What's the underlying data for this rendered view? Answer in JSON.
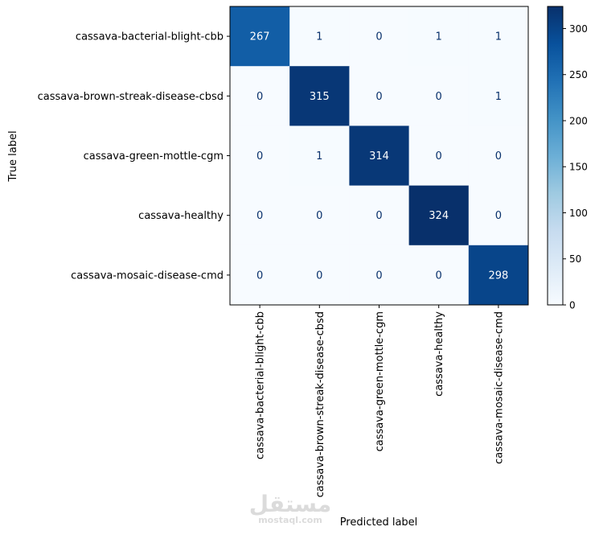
{
  "watermark": {
    "arabic": "مستقل",
    "latin": "mostaql.com"
  },
  "chart_data": {
    "type": "heatmap",
    "xlabel": "Predicted label",
    "ylabel": "True label",
    "labels": [
      "cassava-bacterial-blight-cbb",
      "cassava-brown-streak-disease-cbsd",
      "cassava-green-mottle-cgm",
      "cassava-healthy",
      "cassava-mosaic-disease-cmd"
    ],
    "matrix": [
      [
        267,
        1,
        0,
        1,
        1
      ],
      [
        0,
        315,
        0,
        0,
        1
      ],
      [
        0,
        1,
        314,
        0,
        0
      ],
      [
        0,
        0,
        0,
        324,
        0
      ],
      [
        0,
        0,
        0,
        0,
        298
      ]
    ],
    "colorbar": {
      "min": 0,
      "max": 324,
      "ticks": [
        0,
        50,
        100,
        150,
        200,
        250,
        300
      ]
    },
    "colormap": [
      "#f7fbff",
      "#deebf7",
      "#c6dbef",
      "#9ecae1",
      "#6baed6",
      "#4292c6",
      "#2171b5",
      "#08519c",
      "#08306b"
    ]
  }
}
